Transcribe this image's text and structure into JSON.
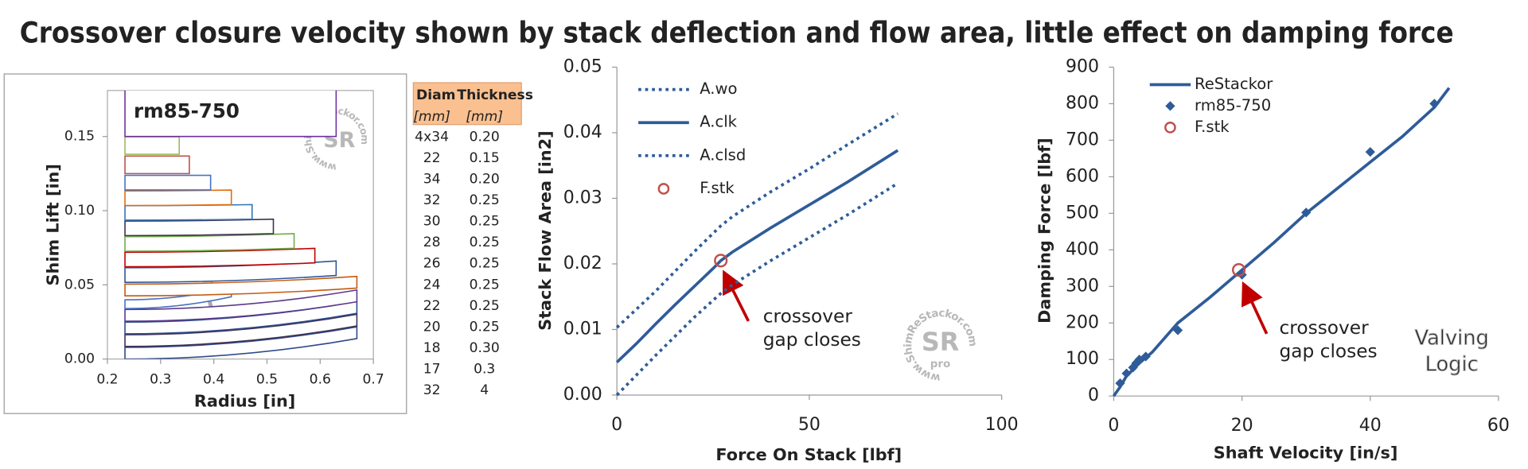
{
  "title": "Crossover closure velocity shown by stack deflection and flow area, little effect on damping force",
  "watermarks": {
    "site": "www.ShimReStackor.com",
    "logo": "SR",
    "pro": "pro",
    "brand": [
      "Valving",
      "Logic"
    ]
  },
  "table": {
    "headers": [
      "Diam",
      "Thickness"
    ],
    "units": [
      "[mm]",
      "[mm]"
    ],
    "rows": [
      [
        "4x34",
        "0.20"
      ],
      [
        "22",
        "0.15"
      ],
      [
        "34",
        "0.20"
      ],
      [
        "32",
        "0.25"
      ],
      [
        "30",
        "0.25"
      ],
      [
        "28",
        "0.25"
      ],
      [
        "26",
        "0.25"
      ],
      [
        "24",
        "0.25"
      ],
      [
        "22",
        "0.25"
      ],
      [
        "20",
        "0.25"
      ],
      [
        "18",
        "0.30"
      ],
      [
        "17",
        "0.3"
      ],
      [
        "32",
        "4"
      ]
    ]
  },
  "chart_data": [
    {
      "type": "shim-stack",
      "label": "rm85-750",
      "xlabel": "Radius [in]",
      "ylabel": "Shim Lift [in]",
      "xlim": [
        0.2,
        0.7
      ],
      "ylim": [
        0,
        0.181
      ],
      "xticks": [
        0.2,
        0.3,
        0.4,
        0.5,
        0.6,
        0.7
      ],
      "yticks": [
        {
          "value": 0,
          "label": "0.00"
        },
        0.05,
        {
          "value": 0.1,
          "label": "0.10"
        },
        0.15
      ],
      "inner_radius": 0.233,
      "shims": [
        {
          "radius": 0.669,
          "base": 0,
          "tip": 0.0138,
          "thick": 0.0079,
          "color": "#2e4a8b"
        },
        {
          "radius": 0.669,
          "base": 0.0085,
          "tip": 0.0223,
          "thick": 0.0079,
          "color": "#403152"
        },
        {
          "radius": 0.669,
          "base": 0.017,
          "tip": 0.0308,
          "thick": 0.0079,
          "color": "#2e4a8b"
        },
        {
          "radius": 0.669,
          "base": 0.0255,
          "tip": 0.0386,
          "thick": 0.0079,
          "color": "#5b3a8c"
        },
        {
          "radius": 0.433,
          "base": 0.034,
          "tip": 0.042,
          "thick": 0.0059,
          "color": "#4472c4"
        },
        {
          "radius": 0.669,
          "base": 0.0426,
          "tip": 0.0478,
          "thick": 0.0079,
          "color": "#c55a11"
        },
        {
          "radius": 0.63,
          "base": 0.0517,
          "tip": 0.0563,
          "thick": 0.0098,
          "color": "#2f5597"
        },
        {
          "radius": 0.59,
          "base": 0.0622,
          "tip": 0.0648,
          "thick": 0.0098,
          "color": "#c00000"
        },
        {
          "radius": 0.551,
          "base": 0.0727,
          "tip": 0.0747,
          "thick": 0.0098,
          "color": "#70ad47"
        },
        {
          "radius": 0.512,
          "base": 0.0832,
          "tip": 0.0845,
          "thick": 0.0098,
          "color": "#403152"
        },
        {
          "radius": 0.472,
          "base": 0.0936,
          "tip": 0.0943,
          "thick": 0.0098,
          "color": "#2e75b6"
        },
        {
          "radius": 0.433,
          "base": 0.1035,
          "tip": 0.1041,
          "thick": 0.0098,
          "color": "#e46c0a"
        },
        {
          "radius": 0.394,
          "base": 0.114,
          "tip": 0.114,
          "thick": 0.0098,
          "color": "#4472c4"
        },
        {
          "radius": 0.354,
          "base": 0.125,
          "tip": 0.125,
          "thick": 0.0118,
          "color": "#c0504d"
        },
        {
          "radius": 0.335,
          "base": 0.138,
          "tip": 0.138,
          "thick": 0.0118,
          "color": "#9bbb59"
        },
        {
          "radius": 0.63,
          "base": 0.15,
          "tip": 0.15,
          "thick": 0.157,
          "color": "#7030a0"
        }
      ]
    },
    {
      "type": "line",
      "xlabel": "Force On Stack [lbf]",
      "ylabel": "Stack Flow Area [in2]",
      "xlim": [
        0,
        100
      ],
      "ylim": [
        0,
        0.05
      ],
      "xticks": [
        0,
        50,
        100
      ],
      "yticks": [
        {
          "value": 0,
          "label": "0.00"
        },
        0.01,
        0.02,
        0.03,
        0.04,
        0.05
      ],
      "legend": "upper left",
      "annotation": [
        "crossover",
        "gap closes"
      ],
      "series": [
        {
          "name": "A.wo",
          "color": "#2e5c99",
          "style": "dotted",
          "x": [
            0,
            10,
            20,
            27,
            30,
            40,
            50,
            60,
            73
          ],
          "values": [
            0.0103,
            0.0158,
            0.0218,
            0.0258,
            0.0272,
            0.031,
            0.0345,
            0.0382,
            0.0429
          ]
        },
        {
          "name": "A.clk",
          "color": "#2e5c99",
          "style": "solid",
          "x": [
            0,
            5,
            10,
            15,
            20,
            25,
            27,
            30,
            40,
            50,
            60,
            73
          ],
          "values": [
            0.005,
            0.0078,
            0.0108,
            0.0137,
            0.0165,
            0.0193,
            0.0205,
            0.0218,
            0.0255,
            0.029,
            0.0325,
            0.0373
          ]
        },
        {
          "name": "A.clsd",
          "color": "#2e5c99",
          "style": "dotted",
          "x": [
            0,
            5,
            10,
            20,
            27,
            30,
            40,
            50,
            60,
            73
          ],
          "values": [
            0,
            0.003,
            0.006,
            0.0118,
            0.0155,
            0.0168,
            0.0205,
            0.024,
            0.0275,
            0.0323
          ]
        },
        {
          "name": "F.stk",
          "color": "#c0504d",
          "marker": "circle-open",
          "x": [
            27
          ],
          "values": [
            0.0205
          ]
        }
      ]
    },
    {
      "type": "line",
      "xlabel": "Shaft Velocity [in/s]",
      "ylabel": "Damping Force [lbf]",
      "xlim": [
        0,
        60
      ],
      "ylim": [
        0,
        900
      ],
      "xticks": [
        0,
        20,
        40,
        60
      ],
      "yticks": [
        0,
        100,
        200,
        300,
        400,
        500,
        600,
        700,
        800,
        900
      ],
      "legend": "upper left",
      "annotation": [
        "crossover",
        "gap closes"
      ],
      "series": [
        {
          "name": "ReStackor",
          "color": "#2e5c99",
          "style": "solid",
          "x": [
            0,
            1,
            2,
            4,
            6,
            10,
            15,
            20,
            25,
            30,
            35,
            40,
            45,
            50,
            52.3
          ],
          "values": [
            0,
            25,
            55,
            90,
            120,
            200,
            270,
            345,
            420,
            500,
            570,
            640,
            710,
            790,
            843
          ]
        },
        {
          "name": "rm85-750",
          "color": "#2e5c99",
          "marker": "diamond",
          "x": [
            1,
            2,
            3,
            3.5,
            4,
            5,
            10,
            20,
            30,
            40,
            50
          ],
          "values": [
            35,
            62,
            78,
            90,
            100,
            108,
            180,
            332,
            502,
            668,
            800
          ]
        },
        {
          "name": "F.stk",
          "color": "#c0504d",
          "marker": "circle-open",
          "x": [
            19.5
          ],
          "values": [
            345
          ]
        }
      ]
    }
  ]
}
